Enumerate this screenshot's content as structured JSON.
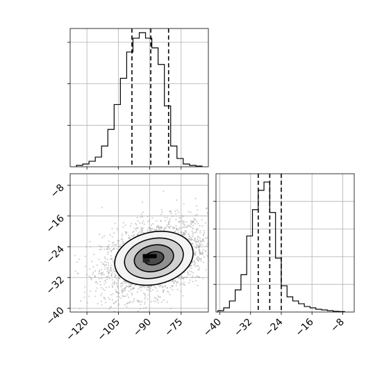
{
  "chart_data": {
    "type": "corner",
    "parameters": [
      {
        "name": "",
        "range": [
          -128,
          -62
        ],
        "ticks": [
          -120,
          -105,
          -90,
          -75
        ],
        "tick_labels": [
          "−120",
          "−105",
          "−90",
          "−75"
        ],
        "quantiles": [
          -98.5,
          -89.5,
          -81.0
        ],
        "histogram": {
          "bins": [
            -125,
            -122,
            -119,
            -116,
            -113,
            -110,
            -107,
            -104,
            -101,
            -98,
            -95,
            -92,
            -89,
            -86,
            -83,
            -80,
            -77,
            -74,
            -71,
            -68,
            -65
          ],
          "counts": [
            0.01,
            0.02,
            0.04,
            0.07,
            0.15,
            0.27,
            0.45,
            0.64,
            0.83,
            0.93,
            0.97,
            0.93,
            0.86,
            0.74,
            0.44,
            0.15,
            0.06,
            0.02,
            0.01,
            0.005
          ]
        }
      },
      {
        "name": "",
        "range": [
          -41,
          -5
        ],
        "ticks": [
          -40,
          -32,
          -24,
          -16,
          -8
        ],
        "tick_labels": [
          "−40",
          "−32",
          "−24",
          "−16",
          "−8"
        ],
        "quantiles": [
          -30.0,
          -27.0,
          -24.0
        ],
        "histogram": {
          "bins": [
            -40.5,
            -39,
            -37.5,
            -36,
            -34.5,
            -33,
            -31.5,
            -30,
            -28.5,
            -27,
            -25.5,
            -24,
            -22.5,
            -21,
            -19.5,
            -18,
            -16.5,
            -15,
            -13.5,
            -12,
            -10.5,
            -9,
            -7.5
          ],
          "counts": [
            0.01,
            0.03,
            0.08,
            0.16,
            0.27,
            0.55,
            0.74,
            0.88,
            0.94,
            0.72,
            0.39,
            0.19,
            0.11,
            0.08,
            0.06,
            0.04,
            0.03,
            0.02,
            0.015,
            0.01,
            0.005,
            0.003
          ]
        }
      }
    ],
    "joint": {
      "x_param": 0,
      "y_param": 1,
      "center": [
        -88,
        -27
      ],
      "sigma": [
        10,
        4
      ],
      "correlation": 0.35,
      "contour_levels": [
        "0.5sigma",
        "1sigma",
        "1.5sigma",
        "2sigma"
      ],
      "density_peak": [
        -90,
        -27
      ]
    },
    "grid": true
  }
}
